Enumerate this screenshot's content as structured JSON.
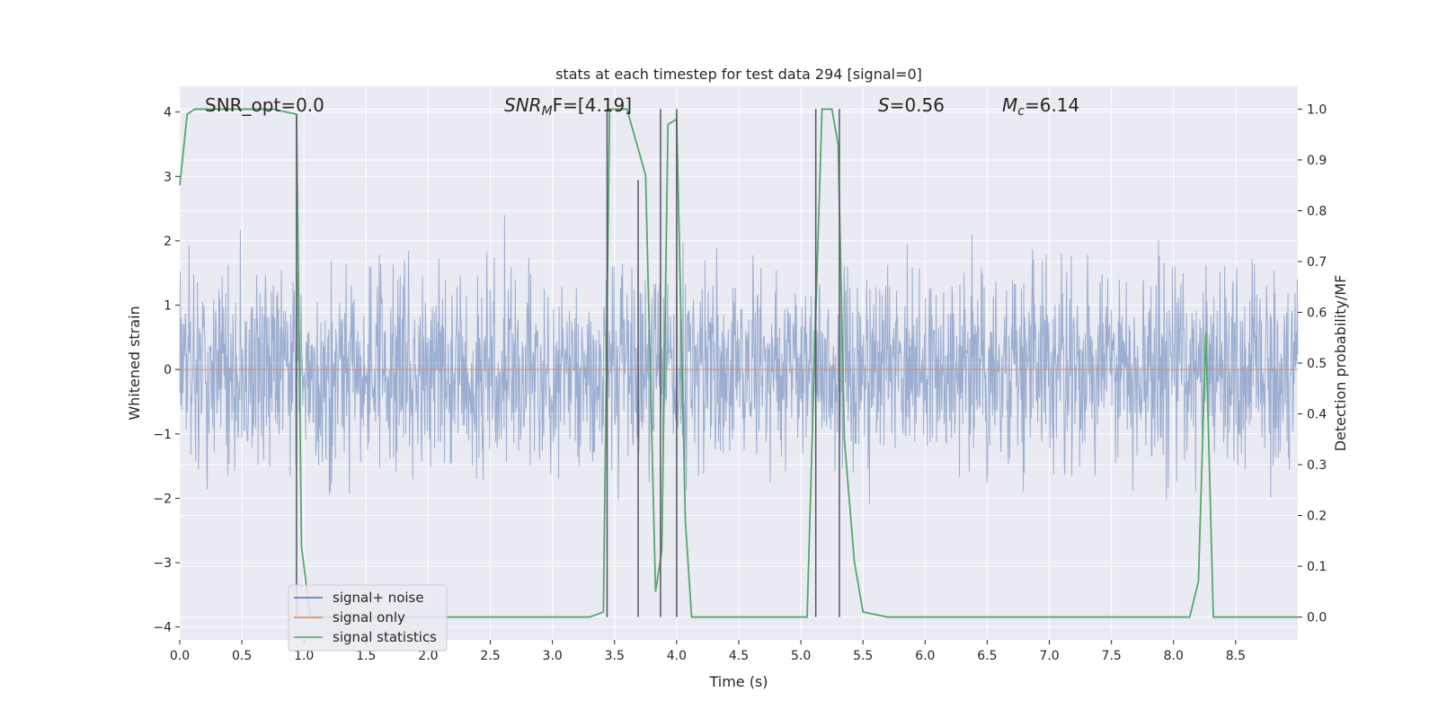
{
  "chart_data": {
    "type": "line",
    "title": "stats at each timestep for test data 294 [signal=0]",
    "xlabel": "Time (s)",
    "ylabel": "Whitened strain",
    "ylabel_right": "Detection probability/MF",
    "xlim": [
      0.0,
      9.0
    ],
    "ylim": [
      -4.2,
      4.4
    ],
    "ylim_right": [
      -0.045,
      1.045
    ],
    "xticks": [
      0.0,
      0.5,
      1.0,
      1.5,
      2.0,
      2.5,
      3.0,
      3.5,
      4.0,
      4.5,
      5.0,
      5.5,
      6.0,
      6.5,
      7.0,
      7.5,
      8.0,
      8.5
    ],
    "xtick_labels": [
      "0.0",
      "0.5",
      "1.0",
      "1.5",
      "2.0",
      "2.5",
      "3.0",
      "3.5",
      "4.0",
      "4.5",
      "5.0",
      "5.5",
      "6.0",
      "6.5",
      "7.0",
      "7.5",
      "8.0",
      "8.5"
    ],
    "yticks": [
      4,
      3,
      2,
      1,
      0,
      -1,
      -2,
      -3,
      -4
    ],
    "ytick_labels": [
      "4",
      "3",
      "2",
      "1",
      "0",
      "−1",
      "−2",
      "−3",
      "−4"
    ],
    "yticks_right": [
      1.0,
      0.9,
      0.8,
      0.7,
      0.6,
      0.5,
      0.4,
      0.3,
      0.2,
      0.1,
      0.0
    ],
    "ytick_labels_right": [
      "1.0",
      "0.9",
      "0.8",
      "0.7",
      "0.6",
      "0.5",
      "0.4",
      "0.3",
      "0.2",
      "0.1",
      "0.0"
    ],
    "grid": true,
    "legend_position": "lower-left",
    "annotations": {
      "snr_opt": "SNR_opt=0.0",
      "snr_mf_main": "SNR",
      "snr_mf_sub": "M",
      "snr_mf_rest": "F=[4.19]",
      "s_main": "S",
      "s_rest": "=0.56",
      "mc_main": "M",
      "mc_sub": "c",
      "mc_rest": "=6.14"
    },
    "series": [
      {
        "name": "signal+ noise",
        "color": "#4c72b0",
        "noise_band_inner": 1.5,
        "noise_band_spikes": 3.9,
        "time_span": [
          0.0,
          9.0
        ]
      },
      {
        "name": "signal only",
        "color": "#dd8452",
        "x": [
          0.0,
          9.0
        ],
        "y": [
          0.0,
          0.0
        ]
      },
      {
        "name": "signal statistics",
        "color": "#55a868",
        "axis": "right",
        "x": [
          0.0,
          0.06,
          0.12,
          0.25,
          0.5,
          0.75,
          0.94,
          0.98,
          1.05,
          1.2,
          3.3,
          3.41,
          3.46,
          3.52,
          3.6,
          3.75,
          3.83,
          3.88,
          3.93,
          4.0,
          4.07,
          4.12,
          4.5,
          5.05,
          5.12,
          5.17,
          5.25,
          5.3,
          5.35,
          5.43,
          5.5,
          5.7,
          8.13,
          8.2,
          8.26,
          8.32,
          8.5,
          9.0
        ],
        "y": [
          0.85,
          0.99,
          1.0,
          1.0,
          1.0,
          1.0,
          0.99,
          0.14,
          0.0,
          0.0,
          0.0,
          0.01,
          1.0,
          1.0,
          1.0,
          0.87,
          0.05,
          0.13,
          0.97,
          0.98,
          0.19,
          0.0,
          0.0,
          0.0,
          0.6,
          1.0,
          1.0,
          0.93,
          0.35,
          0.11,
          0.01,
          0.0,
          0.0,
          0.07,
          0.56,
          0.0,
          0.0,
          0.0
        ]
      }
    ],
    "vertical_markers": [
      {
        "x": 0.94,
        "y_top": 0.99,
        "y_bottom": 0.0
      },
      {
        "x": 3.44,
        "y_top": 1.0,
        "y_bottom": 0.0
      },
      {
        "x": 3.69,
        "y_top": 0.86,
        "y_bottom": 0.0
      },
      {
        "x": 3.87,
        "y_top": 1.0,
        "y_bottom": 0.0
      },
      {
        "x": 4.0,
        "y_top": 1.0,
        "y_bottom": 0.0
      },
      {
        "x": 5.12,
        "y_top": 1.0,
        "y_bottom": 0.0
      },
      {
        "x": 5.31,
        "y_top": 1.0,
        "y_bottom": 0.0
      }
    ],
    "colors": {
      "background": "#eaeaf2",
      "grid": "#ffffff",
      "marker": "#555560"
    }
  }
}
